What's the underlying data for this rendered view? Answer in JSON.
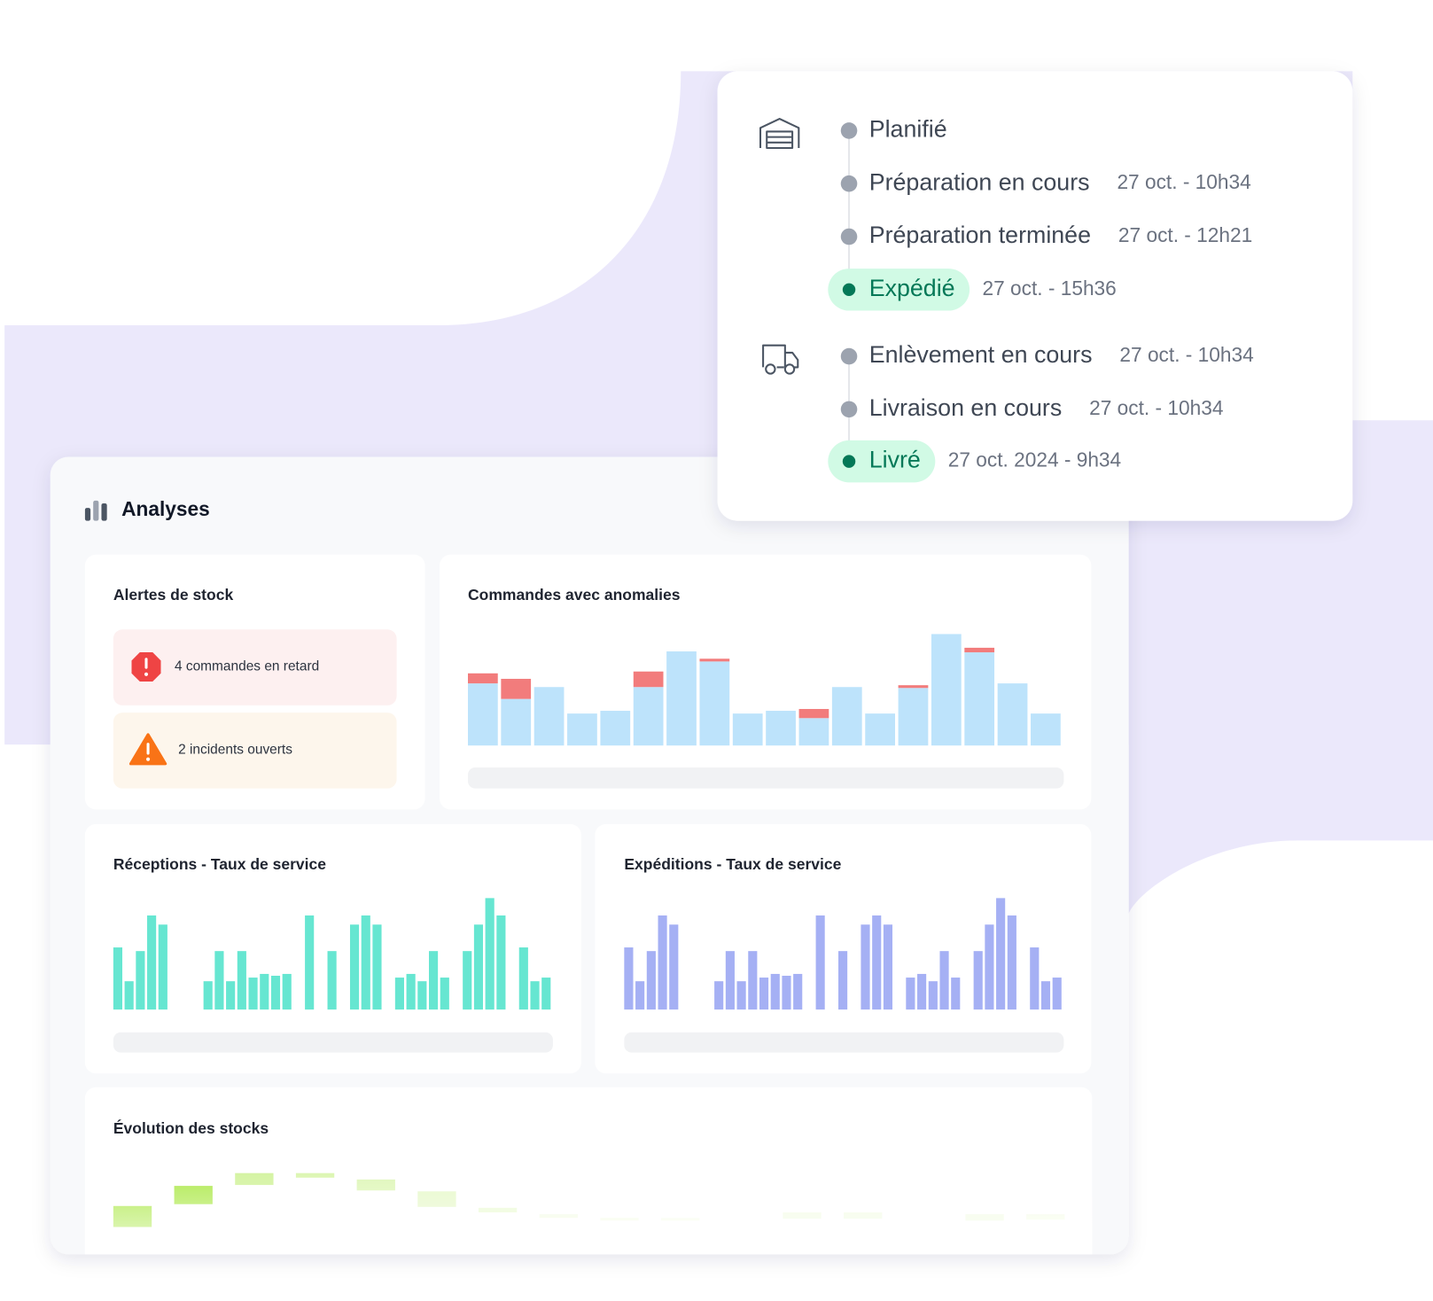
{
  "tracking": {
    "groups": [
      {
        "icon": "warehouse",
        "steps": [
          {
            "label": "Planifié"
          },
          {
            "label": "Préparation en cours",
            "time": "27 oct. - 10h34"
          },
          {
            "label": "Préparation terminée",
            "time": "27 oct. - 12h21"
          },
          {
            "label": "Expédié",
            "time": "27 oct. - 15h36",
            "highlight": true
          }
        ]
      },
      {
        "icon": "truck",
        "steps": [
          {
            "label": "Enlèvement en cours",
            "time": "27 oct. - 10h34"
          },
          {
            "label": "Livraison en cours",
            "time": "27 oct. - 10h34"
          },
          {
            "label": "Livré",
            "time": "27 oct. 2024 - 9h34",
            "highlight": true
          }
        ]
      }
    ]
  },
  "analytics": {
    "title": "Analyses",
    "stock_alerts": {
      "title": "Alertes de stock",
      "items": [
        {
          "label": "4 commandes en retard",
          "level": "error"
        },
        {
          "label": "2 incidents ouverts",
          "level": "warning"
        }
      ]
    },
    "anomalies": {
      "title": "Commandes avec anomalies",
      "values": [
        68,
        51,
        64,
        35,
        38,
        64,
        103,
        92,
        35,
        38,
        30,
        64,
        35,
        63,
        122,
        102,
        68,
        35
      ],
      "anomalies": [
        11,
        22,
        0,
        0,
        0,
        17,
        0,
        3,
        0,
        0,
        10,
        0,
        0,
        3,
        0,
        5,
        0,
        0
      ],
      "color": "#bde3fb",
      "anomaly_color": "#f27c7c"
    },
    "receptions": {
      "title": "Réceptions - Taux de service",
      "color": "#66e6d1",
      "values": [
        68,
        31,
        64,
        103,
        93,
        null,
        null,
        null,
        31,
        64,
        31,
        64,
        35,
        39,
        37,
        39,
        null,
        103,
        null,
        64,
        null,
        93,
        103,
        93,
        null,
        35,
        39,
        31,
        64,
        35,
        null,
        64,
        93,
        122,
        103,
        null,
        68,
        31,
        35
      ]
    },
    "expeditions": {
      "title": "Expéditions - Taux de service",
      "color": "#a5b0f4",
      "values": [
        68,
        31,
        64,
        103,
        93,
        null,
        null,
        null,
        31,
        64,
        31,
        64,
        35,
        39,
        37,
        39,
        null,
        103,
        null,
        64,
        null,
        93,
        103,
        93,
        null,
        35,
        39,
        31,
        64,
        35,
        null,
        64,
        93,
        122,
        103,
        null,
        68,
        31,
        35
      ]
    },
    "stock_evolution": {
      "title": "Évolution des stocks",
      "color": "#a3e635",
      "low": [
        2,
        27,
        48,
        56,
        42,
        24,
        18,
        12,
        9,
        9,
        null,
        11,
        11,
        null,
        9,
        10
      ],
      "high": [
        25,
        47,
        61,
        61,
        54,
        41,
        23,
        16,
        12,
        12,
        null,
        18,
        18,
        null,
        16,
        16
      ]
    }
  }
}
